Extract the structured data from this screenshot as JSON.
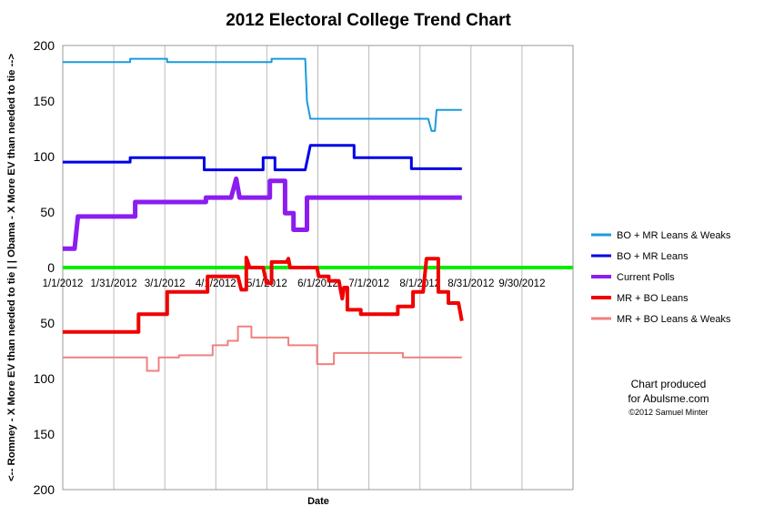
{
  "chart_data": {
    "type": "line",
    "title": "2012 Electoral College Trend Chart",
    "xlabel": "Date",
    "ylabel": "<-- Romney - X More EV than needed to tie | | Obama - X More EV than needed to tie -->",
    "x_ticks": [
      "1/1/2012",
      "1/31/2012",
      "3/1/2012",
      "4/1/2012",
      "5/1/2012",
      "6/1/2012",
      "7/1/2012",
      "8/1/2012",
      "8/31/2012",
      "9/30/2012"
    ],
    "xlim": [
      "2012-01-01",
      "2012-10-30"
    ],
    "y_ticks": [
      "200",
      "150",
      "100",
      "50",
      "0",
      "50",
      "100",
      "150",
      "200"
    ],
    "ylim": [
      -200,
      200
    ],
    "grid": "vertical",
    "legend_position": "right",
    "series": [
      {
        "name": "BO + MR Leans & Weaks",
        "color": "#1a9bdc",
        "width": 2,
        "points": [
          [
            "2012-01-01",
            185
          ],
          [
            "2012-02-10",
            185
          ],
          [
            "2012-02-10",
            188
          ],
          [
            "2012-03-03",
            188
          ],
          [
            "2012-03-03",
            185
          ],
          [
            "2012-05-04",
            185
          ],
          [
            "2012-05-04",
            188
          ],
          [
            "2012-05-24",
            188
          ],
          [
            "2012-05-25",
            150
          ],
          [
            "2012-05-27",
            134
          ],
          [
            "2012-08-05",
            134
          ],
          [
            "2012-08-07",
            123
          ],
          [
            "2012-08-09",
            123
          ],
          [
            "2012-08-10",
            142
          ],
          [
            "2012-08-25",
            142
          ]
        ]
      },
      {
        "name": "BO + MR Leans",
        "color": "#0000e6",
        "width": 3,
        "points": [
          [
            "2012-01-01",
            95
          ],
          [
            "2012-02-10",
            95
          ],
          [
            "2012-02-10",
            99
          ],
          [
            "2012-03-25",
            99
          ],
          [
            "2012-03-25",
            88
          ],
          [
            "2012-04-29",
            88
          ],
          [
            "2012-04-29",
            99
          ],
          [
            "2012-05-06",
            99
          ],
          [
            "2012-05-06",
            88
          ],
          [
            "2012-05-24",
            88
          ],
          [
            "2012-05-27",
            110
          ],
          [
            "2012-06-22",
            110
          ],
          [
            "2012-06-22",
            99
          ],
          [
            "2012-07-26",
            99
          ],
          [
            "2012-07-26",
            89
          ],
          [
            "2012-08-25",
            89
          ]
        ]
      },
      {
        "name": "Current Polls",
        "color": "#8b1df0",
        "width": 5,
        "points": [
          [
            "2012-01-01",
            17
          ],
          [
            "2012-01-08",
            17
          ],
          [
            "2012-01-10",
            46
          ],
          [
            "2012-02-13",
            46
          ],
          [
            "2012-02-13",
            59
          ],
          [
            "2012-03-26",
            59
          ],
          [
            "2012-03-26",
            63
          ],
          [
            "2012-04-10",
            63
          ],
          [
            "2012-04-13",
            80
          ],
          [
            "2012-04-15",
            63
          ],
          [
            "2012-05-03",
            63
          ],
          [
            "2012-05-03",
            78
          ],
          [
            "2012-05-12",
            78
          ],
          [
            "2012-05-12",
            49
          ],
          [
            "2012-05-17",
            49
          ],
          [
            "2012-05-17",
            34
          ],
          [
            "2012-05-25",
            34
          ],
          [
            "2012-05-25",
            63
          ],
          [
            "2012-08-25",
            63
          ]
        ]
      },
      {
        "name": "MR + BO Leans",
        "color": "#f00000",
        "width": 4,
        "points": [
          [
            "2012-01-01",
            -58
          ],
          [
            "2012-02-15",
            -58
          ],
          [
            "2012-02-15",
            -42
          ],
          [
            "2012-03-03",
            -42
          ],
          [
            "2012-03-03",
            -22
          ],
          [
            "2012-03-27",
            -22
          ],
          [
            "2012-03-27",
            -8
          ],
          [
            "2012-04-14",
            -8
          ],
          [
            "2012-04-16",
            -20
          ],
          [
            "2012-04-19",
            -20
          ],
          [
            "2012-04-19",
            9
          ],
          [
            "2012-04-21",
            0
          ],
          [
            "2012-04-29",
            0
          ],
          [
            "2012-05-01",
            -14
          ],
          [
            "2012-05-04",
            -14
          ],
          [
            "2012-05-04",
            5
          ],
          [
            "2012-05-13",
            5
          ],
          [
            "2012-05-14",
            8
          ],
          [
            "2012-05-15",
            0
          ],
          [
            "2012-05-31",
            0
          ],
          [
            "2012-06-01",
            -8
          ],
          [
            "2012-06-07",
            -8
          ],
          [
            "2012-06-07",
            -12
          ],
          [
            "2012-06-13",
            -12
          ],
          [
            "2012-06-15",
            -28
          ],
          [
            "2012-06-16",
            -18
          ],
          [
            "2012-06-18",
            -18
          ],
          [
            "2012-06-18",
            -38
          ],
          [
            "2012-06-26",
            -38
          ],
          [
            "2012-06-26",
            -42
          ],
          [
            "2012-07-18",
            -42
          ],
          [
            "2012-07-18",
            -35
          ],
          [
            "2012-07-27",
            -35
          ],
          [
            "2012-07-27",
            -22
          ],
          [
            "2012-08-02",
            -22
          ],
          [
            "2012-08-04",
            8
          ],
          [
            "2012-08-11",
            8
          ],
          [
            "2012-08-11",
            -22
          ],
          [
            "2012-08-17",
            -22
          ],
          [
            "2012-08-17",
            -32
          ],
          [
            "2012-08-23",
            -32
          ],
          [
            "2012-08-25",
            -48
          ]
        ]
      },
      {
        "name": "MR + BO Leans & Weaks",
        "color": "#f08080",
        "width": 2,
        "points": [
          [
            "2012-01-01",
            -81
          ],
          [
            "2012-02-20",
            -81
          ],
          [
            "2012-02-20",
            -93
          ],
          [
            "2012-02-27",
            -93
          ],
          [
            "2012-02-27",
            -81
          ],
          [
            "2012-03-10",
            -81
          ],
          [
            "2012-03-10",
            -79
          ],
          [
            "2012-03-30",
            -79
          ],
          [
            "2012-03-30",
            -70
          ],
          [
            "2012-04-08",
            -70
          ],
          [
            "2012-04-08",
            -66
          ],
          [
            "2012-04-14",
            -66
          ],
          [
            "2012-04-14",
            -53
          ],
          [
            "2012-04-22",
            -53
          ],
          [
            "2012-04-22",
            -63
          ],
          [
            "2012-05-14",
            -63
          ],
          [
            "2012-05-14",
            -70
          ],
          [
            "2012-05-31",
            -70
          ],
          [
            "2012-05-31",
            -87
          ],
          [
            "2012-06-10",
            -87
          ],
          [
            "2012-06-10",
            -77
          ],
          [
            "2012-07-21",
            -77
          ],
          [
            "2012-07-21",
            -81
          ],
          [
            "2012-08-25",
            -81
          ]
        ]
      },
      {
        "name": "",
        "color": "#00ee00",
        "width": 4,
        "points": [
          [
            "2012-01-01",
            0
          ],
          [
            "2012-10-30",
            0
          ]
        ]
      }
    ]
  },
  "legend": [
    {
      "label": "BO + MR Leans & Weaks",
      "color": "#1a9bdc"
    },
    {
      "label": "BO + MR Leans",
      "color": "#0000e6"
    },
    {
      "label": "Current Polls",
      "color": "#8b1df0"
    },
    {
      "label": "MR + BO Leans",
      "color": "#f00000"
    },
    {
      "label": "MR + BO Leans & Weaks",
      "color": "#f08080"
    }
  ],
  "credit": {
    "line1": "Chart produced",
    "line2": "for Abulsme.com",
    "line3": "©2012 Samuel Minter"
  }
}
